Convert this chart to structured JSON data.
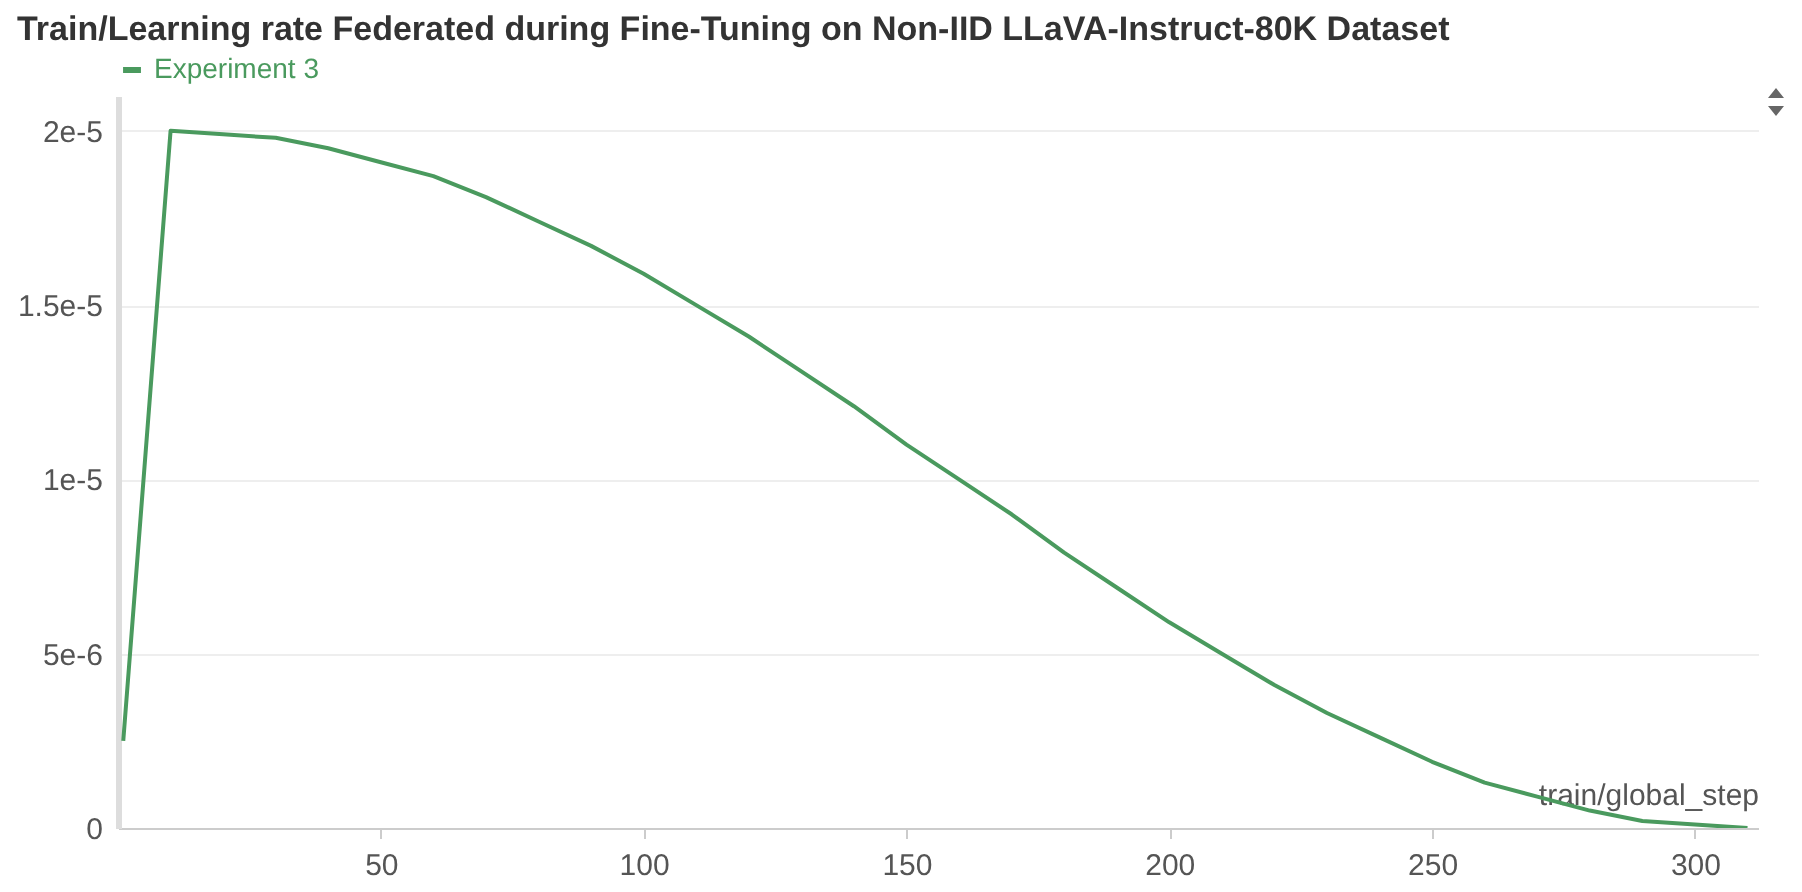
{
  "chart_data": {
    "type": "line",
    "title": "Train/Learning rate Federated during Fine-Tuning on Non-IID LLaVA-Instruct-80K Dataset",
    "xlabel": "train/global_step",
    "x": [
      1,
      10,
      20,
      30,
      40,
      50,
      60,
      70,
      80,
      90,
      100,
      110,
      120,
      130,
      140,
      150,
      160,
      170,
      180,
      190,
      200,
      210,
      220,
      230,
      240,
      250,
      260,
      270,
      280,
      290,
      300,
      310
    ],
    "series": [
      {
        "name": "Experiment 3",
        "color": "#4a9a5e",
        "values": [
          2.5e-06,
          2e-05,
          1.99e-05,
          1.98e-05,
          1.95e-05,
          1.91e-05,
          1.87e-05,
          1.81e-05,
          1.74e-05,
          1.67e-05,
          1.59e-05,
          1.5e-05,
          1.41e-05,
          1.31e-05,
          1.21e-05,
          1.1e-05,
          1e-05,
          9e-06,
          7.9e-06,
          6.9e-06,
          5.9e-06,
          5e-06,
          4.1e-06,
          3.3e-06,
          2.6e-06,
          1.9e-06,
          1.3e-06,
          9e-07,
          5e-07,
          2e-07,
          1e-07,
          0
        ]
      }
    ],
    "xlim": [
      0,
      312
    ],
    "xticks": [
      50,
      100,
      150,
      200,
      250,
      300
    ],
    "ylim": [
      0,
      2.1e-05
    ],
    "yticks": [
      0,
      {
        "value": 5e-06,
        "label": "5e-6"
      },
      {
        "value": 1e-05,
        "label": "1e-5"
      },
      {
        "value": 1.5e-05,
        "label": "1.5e-5"
      },
      {
        "value": 2e-05,
        "label": "2e-5"
      }
    ],
    "grid": "y",
    "legend": "top",
    "line_style": "solid"
  }
}
